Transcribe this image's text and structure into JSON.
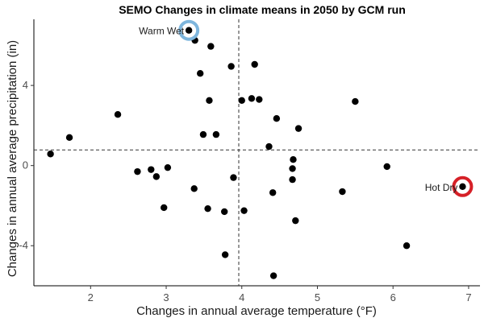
{
  "chart_data": {
    "type": "scatter",
    "title": "SEMO Changes in climate means in 2050 by GCM run",
    "xlabel": "Changes in annual average temperature (°F)",
    "ylabel": "Changes in annual average precipitation (in)",
    "xlim": [
      1.25,
      7.15
    ],
    "ylim": [
      -6.0,
      7.3
    ],
    "xticks": [
      2,
      3,
      4,
      5,
      6,
      7
    ],
    "yticks": [
      -4,
      0,
      4
    ],
    "ytick_labels": [
      "-4",
      "0",
      "4"
    ],
    "reference_lines": {
      "x": 3.96,
      "y": 0.78
    },
    "grid": false,
    "point_color": "#000000",
    "points": [
      {
        "x": 1.47,
        "y": 0.58
      },
      {
        "x": 1.72,
        "y": 1.4
      },
      {
        "x": 2.36,
        "y": 2.55
      },
      {
        "x": 2.62,
        "y": -0.3
      },
      {
        "x": 2.8,
        "y": -0.2
      },
      {
        "x": 2.87,
        "y": -0.55
      },
      {
        "x": 2.97,
        "y": -2.1
      },
      {
        "x": 3.02,
        "y": -0.1
      },
      {
        "x": 3.3,
        "y": 6.75
      },
      {
        "x": 3.37,
        "y": -1.15
      },
      {
        "x": 3.38,
        "y": 6.25
      },
      {
        "x": 3.45,
        "y": 4.6
      },
      {
        "x": 3.49,
        "y": 1.55
      },
      {
        "x": 3.55,
        "y": -2.15
      },
      {
        "x": 3.57,
        "y": 3.25
      },
      {
        "x": 3.59,
        "y": 5.95
      },
      {
        "x": 3.66,
        "y": 1.55
      },
      {
        "x": 3.77,
        "y": -2.3
      },
      {
        "x": 3.78,
        "y": -4.45
      },
      {
        "x": 3.86,
        "y": 4.95
      },
      {
        "x": 3.89,
        "y": -0.6
      },
      {
        "x": 4.0,
        "y": 3.25
      },
      {
        "x": 4.03,
        "y": -2.25
      },
      {
        "x": 4.13,
        "y": 3.35
      },
      {
        "x": 4.17,
        "y": 5.05
      },
      {
        "x": 4.23,
        "y": 3.3
      },
      {
        "x": 4.36,
        "y": 0.95
      },
      {
        "x": 4.41,
        "y": -1.35
      },
      {
        "x": 4.42,
        "y": -5.5
      },
      {
        "x": 4.46,
        "y": 2.35
      },
      {
        "x": 4.67,
        "y": -0.7
      },
      {
        "x": 4.67,
        "y": -0.15
      },
      {
        "x": 4.68,
        "y": 0.3
      },
      {
        "x": 4.71,
        "y": -2.75
      },
      {
        "x": 4.75,
        "y": 1.85
      },
      {
        "x": 5.33,
        "y": -1.3
      },
      {
        "x": 5.5,
        "y": 3.2
      },
      {
        "x": 5.92,
        "y": -0.05
      },
      {
        "x": 6.18,
        "y": -4.0
      },
      {
        "x": 6.92,
        "y": -1.05
      }
    ],
    "highlights": [
      {
        "label": "Warm Wet",
        "x": 3.3,
        "y": 6.75,
        "color": "#7EB6DD"
      },
      {
        "label": "Hot Dry",
        "x": 6.92,
        "y": -1.05,
        "color": "#D62027"
      }
    ]
  }
}
